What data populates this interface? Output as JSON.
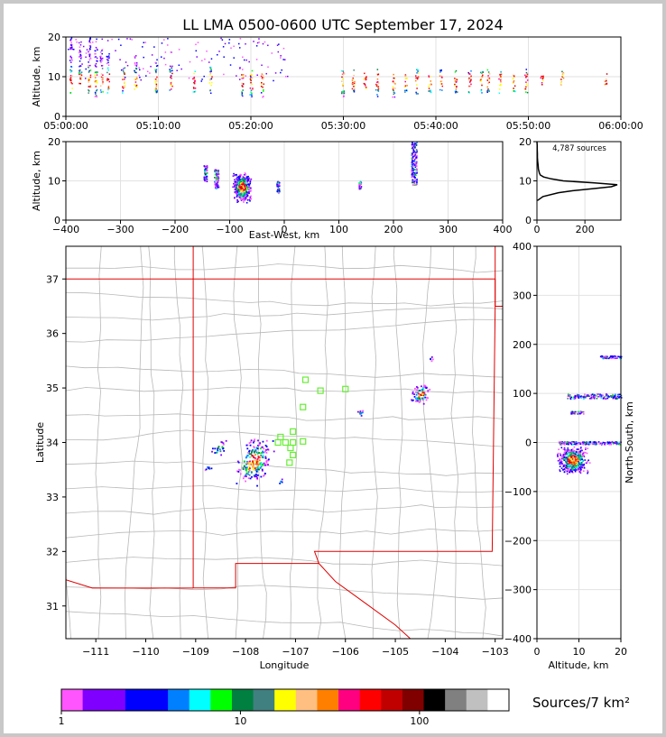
{
  "chart_data": [
    {
      "type": "scatter",
      "id": "time_altitude",
      "title": "LL LMA 0500-0600 UTC September 17, 2024",
      "xlabel": "",
      "ylabel": "Altitude, km",
      "x_ticks": [
        "05:00:00",
        "05:10:00",
        "05:20:00",
        "05:30:00",
        "05:40:00",
        "05:50:00",
        "06:00:00"
      ],
      "xlim_minutes": [
        0,
        60
      ],
      "ylim": [
        0,
        20
      ],
      "y_ticks": [
        0,
        10,
        20
      ],
      "grid": true,
      "columns": [
        {
          "t": 0.5,
          "lo": 6,
          "hi": 20
        },
        {
          "t": 1.5,
          "lo": 7,
          "hi": 19
        },
        {
          "t": 2.5,
          "lo": 6,
          "hi": 20
        },
        {
          "t": 3.2,
          "lo": 5,
          "hi": 18
        },
        {
          "t": 3.8,
          "lo": 6,
          "hi": 17
        },
        {
          "t": 4.5,
          "lo": 6,
          "hi": 16
        },
        {
          "t": 6.2,
          "lo": 6,
          "hi": 13
        },
        {
          "t": 7.5,
          "lo": 7,
          "hi": 16
        },
        {
          "t": 9.7,
          "lo": 6,
          "hi": 15
        },
        {
          "t": 11.3,
          "lo": 6,
          "hi": 13
        },
        {
          "t": 13.8,
          "lo": 6,
          "hi": 12
        },
        {
          "t": 15.6,
          "lo": 6,
          "hi": 13
        },
        {
          "t": 19.0,
          "lo": 5,
          "hi": 11
        },
        {
          "t": 20.0,
          "lo": 5,
          "hi": 12
        },
        {
          "t": 21.2,
          "lo": 5,
          "hi": 11
        },
        {
          "t": 29.9,
          "lo": 5,
          "hi": 12
        },
        {
          "t": 31.0,
          "lo": 6,
          "hi": 12
        },
        {
          "t": 32.3,
          "lo": 6,
          "hi": 11
        },
        {
          "t": 33.6,
          "lo": 5,
          "hi": 12
        },
        {
          "t": 35.4,
          "lo": 5,
          "hi": 11
        },
        {
          "t": 36.7,
          "lo": 6,
          "hi": 11
        },
        {
          "t": 37.9,
          "lo": 5,
          "hi": 12
        },
        {
          "t": 39.3,
          "lo": 6,
          "hi": 11
        },
        {
          "t": 40.5,
          "lo": 6,
          "hi": 12
        },
        {
          "t": 42.1,
          "lo": 6,
          "hi": 12
        },
        {
          "t": 43.6,
          "lo": 6,
          "hi": 12
        },
        {
          "t": 44.9,
          "lo": 6,
          "hi": 12
        },
        {
          "t": 45.6,
          "lo": 6,
          "hi": 12
        },
        {
          "t": 46.9,
          "lo": 6,
          "hi": 12
        },
        {
          "t": 48.4,
          "lo": 6,
          "hi": 11
        },
        {
          "t": 49.7,
          "lo": 6,
          "hi": 12
        },
        {
          "t": 51.4,
          "lo": 8,
          "hi": 11
        },
        {
          "t": 53.6,
          "lo": 8,
          "hi": 12
        },
        {
          "t": 58.3,
          "lo": 8,
          "hi": 11
        }
      ]
    },
    {
      "type": "scatter",
      "id": "east_west_altitude",
      "xlabel": "East-West, km",
      "ylabel": "Altitude, km",
      "xlim": [
        -400,
        400
      ],
      "ylim": [
        0,
        20
      ],
      "x_ticks": [
        -400,
        -300,
        -200,
        -100,
        0,
        100,
        200,
        300,
        400
      ],
      "y_ticks": [
        0,
        10,
        20
      ],
      "grid": true,
      "clusters": [
        {
          "x": -78,
          "xw": 18,
          "lo": 5,
          "hi": 13,
          "core": 8.5
        },
        {
          "x": -125,
          "xw": 8,
          "lo": 8,
          "hi": 13,
          "core": null
        },
        {
          "x": -145,
          "xw": 6,
          "lo": 10,
          "hi": 14,
          "core": null
        },
        {
          "x": -12,
          "xw": 5,
          "lo": 7,
          "hi": 10,
          "core": null
        },
        {
          "x": 138,
          "xw": 4,
          "lo": 8,
          "hi": 10,
          "core": null
        },
        {
          "x": 237,
          "xw": 10,
          "lo": 9,
          "hi": 20,
          "core": null
        }
      ]
    },
    {
      "type": "line",
      "id": "altitude_histogram",
      "annotation": "4,787 sources",
      "xlim": [
        0,
        350
      ],
      "ylim": [
        0,
        20
      ],
      "x_ticks": [
        0,
        200
      ],
      "y_ticks": [
        0,
        10,
        20
      ],
      "grid": true,
      "profile": [
        {
          "alt": 5,
          "count": 2
        },
        {
          "alt": 6,
          "count": 25
        },
        {
          "alt": 7,
          "count": 90
        },
        {
          "alt": 7.5,
          "count": 150
        },
        {
          "alt": 8,
          "count": 230
        },
        {
          "alt": 8.5,
          "count": 310
        },
        {
          "alt": 9,
          "count": 335
        },
        {
          "alt": 9.5,
          "count": 240
        },
        {
          "alt": 10,
          "count": 110
        },
        {
          "alt": 10.5,
          "count": 60
        },
        {
          "alt": 11,
          "count": 28
        },
        {
          "alt": 11.5,
          "count": 14
        },
        {
          "alt": 12,
          "count": 10
        },
        {
          "alt": 13,
          "count": 6
        },
        {
          "alt": 14,
          "count": 5
        },
        {
          "alt": 15,
          "count": 3
        },
        {
          "alt": 16,
          "count": 2
        },
        {
          "alt": 17,
          "count": 2
        },
        {
          "alt": 18,
          "count": 1
        },
        {
          "alt": 19,
          "count": 1
        },
        {
          "alt": 20,
          "count": 0
        }
      ]
    },
    {
      "type": "scatter",
      "id": "plan_view",
      "xlabel": "Longitude",
      "ylabel": "Latitude",
      "xlim": [
        -111.6,
        -102.85
      ],
      "ylim": [
        30.4,
        37.6
      ],
      "x_ticks": [
        -111,
        -110,
        -109,
        -108,
        -107,
        -106,
        -105,
        -104,
        -103
      ],
      "y_ticks": [
        31,
        32,
        33,
        34,
        35,
        36,
        37
      ],
      "clusters": [
        {
          "lon": -107.85,
          "lat": 33.65,
          "w": 0.35,
          "h": 0.45,
          "n": 220
        },
        {
          "lon": -108.55,
          "lat": 33.9,
          "w": 0.15,
          "h": 0.15,
          "n": 25
        },
        {
          "lon": -108.75,
          "lat": 33.55,
          "w": 0.1,
          "h": 0.05,
          "n": 8
        },
        {
          "lon": -107.3,
          "lat": 33.3,
          "w": 0.05,
          "h": 0.05,
          "n": 6
        },
        {
          "lon": -104.5,
          "lat": 34.9,
          "w": 0.2,
          "h": 0.2,
          "n": 80
        },
        {
          "lon": -105.7,
          "lat": 34.55,
          "w": 0.08,
          "h": 0.05,
          "n": 10
        },
        {
          "lon": -104.3,
          "lat": 35.55,
          "w": 0.05,
          "h": 0.05,
          "n": 5
        }
      ],
      "stations": [
        {
          "lon": -106.8,
          "lat": 35.15
        },
        {
          "lon": -106.5,
          "lat": 34.95
        },
        {
          "lon": -106.0,
          "lat": 34.98
        },
        {
          "lon": -106.85,
          "lat": 34.65
        },
        {
          "lon": -107.05,
          "lat": 34.2
        },
        {
          "lon": -107.3,
          "lat": 34.1
        },
        {
          "lon": -107.35,
          "lat": 34.0
        },
        {
          "lon": -107.2,
          "lat": 34.0
        },
        {
          "lon": -107.05,
          "lat": 34.0
        },
        {
          "lon": -106.85,
          "lat": 34.02
        },
        {
          "lon": -107.1,
          "lat": 33.9
        },
        {
          "lon": -107.05,
          "lat": 33.77
        },
        {
          "lon": -107.12,
          "lat": 33.63
        }
      ]
    },
    {
      "type": "scatter",
      "id": "altitude_north_south",
      "xlabel": "Altitude, km",
      "ylabel": "North-South, km",
      "xlim": [
        0,
        20
      ],
      "ylim": [
        -400,
        400
      ],
      "x_ticks": [
        0,
        10,
        20
      ],
      "y_ticks": [
        -400,
        -300,
        -200,
        -100,
        0,
        100,
        200,
        300,
        400
      ],
      "grid": true,
      "clusters": [
        {
          "y": -35,
          "yh": 30,
          "lo": 5,
          "hi": 13,
          "core": 8.5
        },
        {
          "y": 95,
          "yh": 10,
          "lo": 7,
          "hi": 20,
          "core": null
        },
        {
          "y": 62,
          "yh": 5,
          "lo": 8,
          "hi": 11,
          "core": null
        },
        {
          "y": 175,
          "yh": 5,
          "lo": 15,
          "hi": 20,
          "core": null
        },
        {
          "y": 0,
          "yh": 6,
          "lo": 5,
          "hi": 20,
          "core": null
        }
      ]
    }
  ],
  "colorbar": {
    "label": "Sources/7 km²",
    "tick_labels": [
      "1",
      "10",
      "100"
    ],
    "colors": [
      "#ff55ff",
      "#8000ff",
      "#8000ff",
      "#0000ff",
      "#0000ff",
      "#0080ff",
      "#00ffff",
      "#00ff00",
      "#008040",
      "#408080",
      "#ffff00",
      "#ffbf80",
      "#ff8000",
      "#ff0080",
      "#ff0000",
      "#c00000",
      "#800000",
      "#000000",
      "#808080",
      "#c0c0c0",
      "#ffffff"
    ]
  }
}
